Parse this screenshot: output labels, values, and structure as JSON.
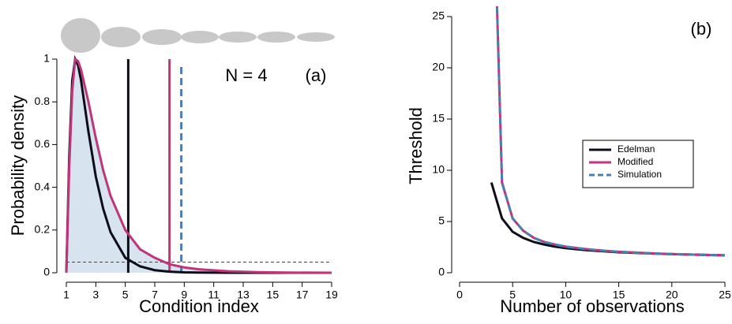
{
  "chart_data": [
    {
      "type": "line",
      "xlabel": "Condition index",
      "ylabel": "Probability density",
      "xlim": [
        1,
        19
      ],
      "ylim": [
        0,
        1
      ],
      "xticks": [
        1,
        3,
        5,
        7,
        9,
        11,
        13,
        15,
        17,
        19
      ],
      "yticks": [
        0,
        0.2,
        0.4,
        0.6,
        0.8,
        1
      ],
      "annotations": [
        "N = 4",
        "(a)"
      ],
      "shade_color": "#d7e3ee",
      "series": [
        {
          "color": "#0d0d1a",
          "x": [
            1,
            1.2,
            1.4,
            1.6,
            1.8,
            2,
            2.5,
            3,
            3.5,
            4,
            5,
            6,
            7,
            8,
            9,
            10,
            12,
            14,
            16,
            19
          ],
          "values": [
            0,
            0.55,
            0.9,
            1.0,
            0.97,
            0.9,
            0.66,
            0.45,
            0.3,
            0.19,
            0.07,
            0.03,
            0.012,
            0.005,
            0.002,
            0.001,
            0,
            0,
            0,
            0
          ]
        },
        {
          "color": "#c0357a",
          "shade": true,
          "x": [
            1,
            1.2,
            1.4,
            1.6,
            1.8,
            2,
            2.5,
            3,
            3.5,
            4,
            5,
            6,
            7,
            8,
            9,
            10,
            12,
            14,
            16,
            19
          ],
          "values": [
            0,
            0.5,
            0.85,
            1.0,
            0.99,
            0.95,
            0.8,
            0.63,
            0.48,
            0.36,
            0.2,
            0.11,
            0.07,
            0.04,
            0.025,
            0.016,
            0.007,
            0.003,
            0.001,
            0
          ]
        }
      ],
      "vlines": [
        {
          "x": 5.2,
          "color": "#0d0d1a"
        },
        {
          "x": 8.0,
          "color": "#c0357a"
        },
        {
          "x": 8.8,
          "color": "#4a7fb0",
          "dashed": true
        }
      ],
      "hline": 0.05
    },
    {
      "type": "line",
      "xlabel": "Number of observations",
      "ylabel": "Threshold",
      "xlim": [
        0,
        25
      ],
      "ylim": [
        0,
        26
      ],
      "xticks": [
        0,
        5,
        10,
        15,
        20,
        25
      ],
      "yticks": [
        0,
        5,
        10,
        15,
        20,
        25
      ],
      "annotations": [
        "(b)"
      ],
      "legend": "center-right",
      "series": [
        {
          "name": "Edelman",
          "color": "#0d0d1a",
          "x": [
            3,
            4,
            5,
            6,
            7,
            8,
            9,
            10,
            11,
            12,
            13,
            14,
            15,
            16,
            17,
            18,
            19,
            20,
            21,
            22,
            23,
            24,
            25
          ],
          "values": [
            8.8,
            5.3,
            4.0,
            3.4,
            3.0,
            2.75,
            2.55,
            2.4,
            2.3,
            2.2,
            2.13,
            2.07,
            2.0,
            1.96,
            1.92,
            1.88,
            1.85,
            1.82,
            1.79,
            1.77,
            1.75,
            1.72,
            1.7
          ]
        },
        {
          "name": "Modified",
          "color": "#c0357a",
          "x": [
            3.5,
            4,
            5,
            6,
            7,
            8,
            9,
            10,
            11,
            12,
            13,
            14,
            15,
            16,
            17,
            18,
            19,
            20,
            21,
            22,
            23,
            24,
            25
          ],
          "values": [
            27,
            8.8,
            5.3,
            4.1,
            3.4,
            3.0,
            2.75,
            2.55,
            2.42,
            2.3,
            2.2,
            2.12,
            2.05,
            2.0,
            1.95,
            1.9,
            1.86,
            1.83,
            1.8,
            1.77,
            1.74,
            1.72,
            1.7
          ]
        },
        {
          "name": "Simulation",
          "color": "#4a7fb0",
          "dashed": true,
          "x": [
            3.5,
            4,
            5,
            6,
            7,
            8,
            9,
            10,
            11,
            12,
            13,
            14,
            15,
            16,
            17,
            18,
            19,
            20,
            21,
            22,
            23,
            24,
            25
          ],
          "values": [
            27,
            8.8,
            5.3,
            4.1,
            3.4,
            3.0,
            2.75,
            2.55,
            2.42,
            2.3,
            2.2,
            2.12,
            2.05,
            2.0,
            1.95,
            1.9,
            1.86,
            1.83,
            1.8,
            1.77,
            1.74,
            1.72,
            1.7
          ]
        }
      ]
    }
  ]
}
